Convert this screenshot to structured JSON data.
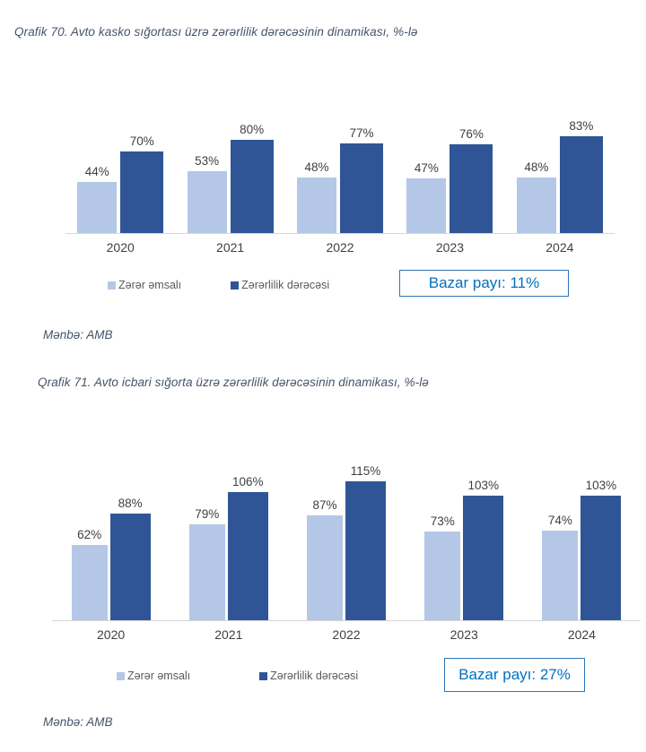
{
  "chart_data": [
    {
      "type": "bar",
      "title": "Qrafik 70. Avto kasko sığortası üzrə zərərlilik dərəcəsinin dinamikası, %-lə",
      "categories": [
        "2020",
        "2021",
        "2022",
        "2023",
        "2024"
      ],
      "series": [
        {
          "name": "Zərər əmsalı",
          "color": "#B4C7E7",
          "values": [
            44,
            53,
            48,
            47,
            48
          ]
        },
        {
          "name": "Zərərlilik dərəcəsi",
          "color": "#2F5597",
          "values": [
            70,
            80,
            77,
            76,
            83
          ]
        }
      ],
      "value_suffix": "%",
      "data_labels": true,
      "legend_position": "bottom",
      "grid": false,
      "annotation": "Bazar payı: 11%",
      "source": "Mənbə: AMB"
    },
    {
      "type": "bar",
      "title": "Qrafik 71. Avto icbari sığorta üzrə zərərlilik dərəcəsinin dinamikası, %-lə",
      "categories": [
        "2020",
        "2021",
        "2022",
        "2023",
        "2024"
      ],
      "series": [
        {
          "name": "Zərər əmsalı",
          "color": "#B4C7E7",
          "values": [
            62,
            79,
            87,
            73,
            74
          ]
        },
        {
          "name": "Zərərlilik dərəcəsi",
          "color": "#2F5597",
          "values": [
            88,
            106,
            115,
            103,
            103
          ]
        }
      ],
      "value_suffix": "%",
      "data_labels": true,
      "legend_position": "bottom",
      "grid": false,
      "annotation": "Bazar payı: 27%",
      "source": "Mənbə: AMB"
    }
  ],
  "colors": {
    "bar_light": "#B4C7E7",
    "bar_dark": "#2F5597",
    "title_text": "#44546A",
    "data_label_text": "#404040",
    "axis_label_text": "#404040",
    "legend_text": "#595959",
    "axis_line": "#D6D6D6",
    "annotation_text": "#0070C0",
    "annotation_border": "#2E75B6",
    "background": "#FFFFFF"
  }
}
